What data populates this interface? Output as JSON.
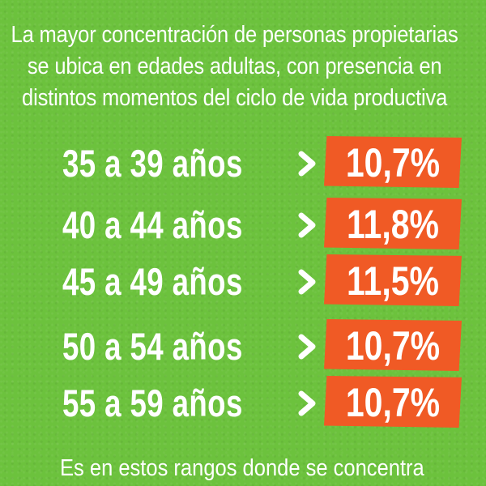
{
  "intro_lines": [
    "La mayor concentración de personas propietarias",
    "se ubica en edades adultas, con presencia en",
    "distintos momentos del ciclo de vida productiva"
  ],
  "rows": [
    {
      "age": "35 a 39 años",
      "percent": "10,7%"
    },
    {
      "age": "40 a 44 años",
      "percent": "11,8%"
    },
    {
      "age": "45 a 49 años",
      "percent": "11,5%"
    },
    {
      "age": "50 a 54 años",
      "percent": "10,7%"
    },
    {
      "age": "55 a 59 años",
      "percent": "10,7%"
    }
  ],
  "outro": "Es en estos rangos donde se concentra",
  "colors": {
    "background": "#6cc23d",
    "accent": "#f05a25",
    "text": "#ffffff"
  },
  "icons": {
    "row_arrow": "chevron-right-icon"
  }
}
